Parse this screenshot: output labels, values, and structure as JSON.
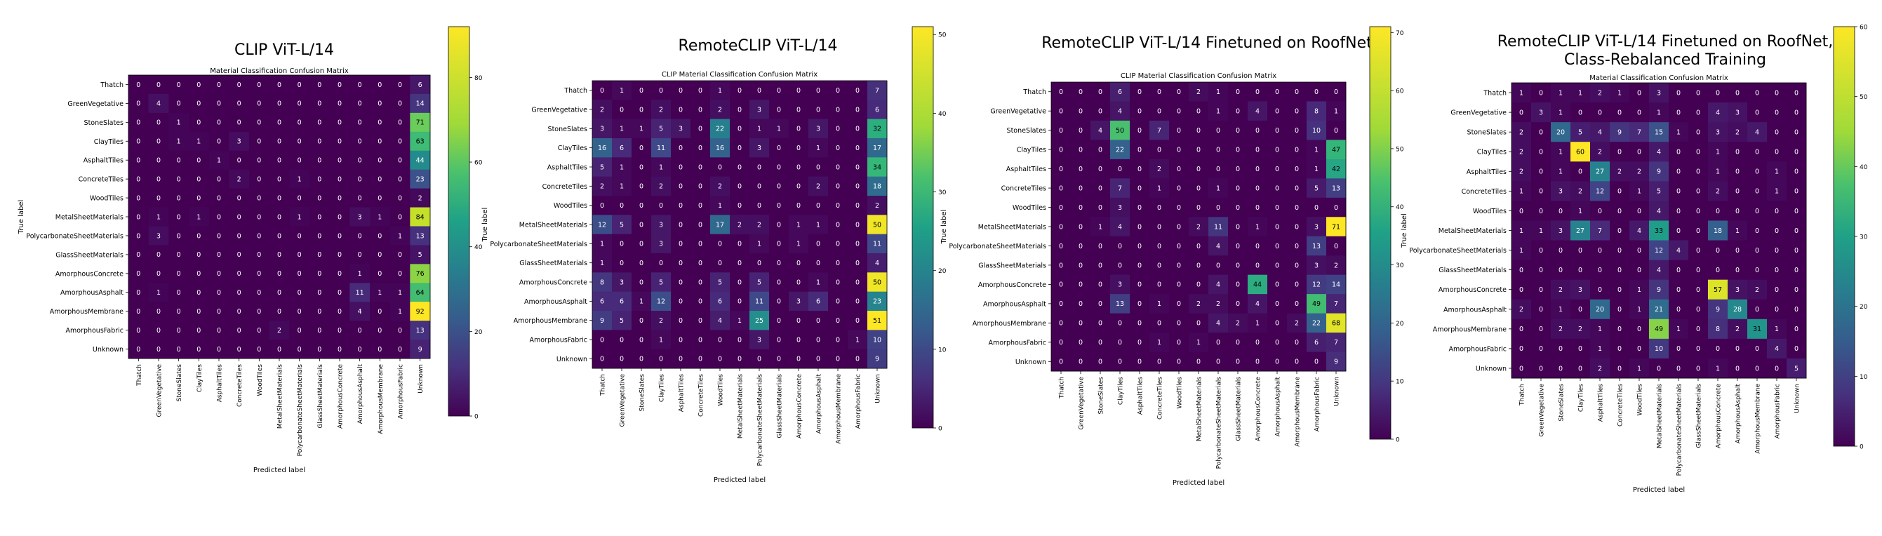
{
  "chart_data": [
    {
      "type": "heatmap",
      "title": "CLIP ViT-L/14",
      "subtitle": "Material Classification Confusion Matrix",
      "xlabel": "Predicted label",
      "ylabel": "True label",
      "labels": [
        "Thatch",
        "GreenVegetative",
        "StoneSlates",
        "ClayTiles",
        "AsphaltTiles",
        "ConcreteTiles",
        "WoodTiles",
        "MetalSheetMaterials",
        "PolycarbonateSheetMaterials",
        "GlassSheetMaterials",
        "AmorphousConcrete",
        "AmorphousAsphalt",
        "AmorphousMembrane",
        "AmorphousFabric",
        "Unknown"
      ],
      "matrix": [
        [
          0,
          0,
          0,
          0,
          0,
          0,
          0,
          0,
          0,
          0,
          0,
          0,
          0,
          0,
          6
        ],
        [
          0,
          4,
          0,
          0,
          0,
          0,
          0,
          0,
          0,
          0,
          0,
          0,
          0,
          0,
          14
        ],
        [
          0,
          0,
          1,
          0,
          0,
          0,
          0,
          0,
          0,
          0,
          0,
          0,
          0,
          0,
          71
        ],
        [
          0,
          0,
          1,
          1,
          0,
          3,
          0,
          0,
          0,
          0,
          0,
          0,
          0,
          0,
          63
        ],
        [
          0,
          0,
          0,
          0,
          1,
          0,
          0,
          0,
          0,
          0,
          0,
          0,
          0,
          0,
          44
        ],
        [
          0,
          0,
          0,
          0,
          0,
          2,
          0,
          0,
          1,
          0,
          0,
          0,
          0,
          0,
          23
        ],
        [
          0,
          0,
          0,
          0,
          0,
          0,
          0,
          0,
          0,
          0,
          0,
          0,
          0,
          0,
          2
        ],
        [
          0,
          1,
          0,
          1,
          0,
          0,
          0,
          0,
          1,
          0,
          0,
          3,
          1,
          0,
          84
        ],
        [
          0,
          3,
          0,
          0,
          0,
          0,
          0,
          0,
          0,
          0,
          0,
          0,
          0,
          1,
          13
        ],
        [
          0,
          0,
          0,
          0,
          0,
          0,
          0,
          0,
          0,
          0,
          0,
          0,
          0,
          0,
          5
        ],
        [
          0,
          0,
          0,
          0,
          0,
          0,
          0,
          0,
          0,
          0,
          0,
          1,
          0,
          0,
          76
        ],
        [
          0,
          1,
          0,
          0,
          0,
          0,
          0,
          0,
          0,
          0,
          0,
          11,
          1,
          1,
          64
        ],
        [
          0,
          0,
          0,
          0,
          0,
          0,
          0,
          0,
          0,
          0,
          0,
          4,
          0,
          1,
          92
        ],
        [
          0,
          0,
          0,
          0,
          0,
          0,
          0,
          2,
          0,
          0,
          0,
          0,
          0,
          0,
          13
        ],
        [
          0,
          0,
          0,
          0,
          0,
          0,
          0,
          0,
          0,
          0,
          0,
          0,
          0,
          0,
          9
        ]
      ],
      "colorbar": {
        "max": 92,
        "ticks": [
          0,
          20,
          40,
          60,
          80
        ]
      }
    },
    {
      "type": "heatmap",
      "title": "RemoteCLIP ViT-L/14",
      "subtitle": "CLIP Material Classification Confusion Matrix",
      "xlabel": "Predicted label",
      "ylabel": "True label",
      "labels": [
        "Thatch",
        "GreenVegetative",
        "StoneSlates",
        "ClayTiles",
        "AsphaltTiles",
        "ConcreteTiles",
        "WoodTiles",
        "MetalSheetMaterials",
        "PolycarbonateSheetMaterials",
        "GlassSheetMaterials",
        "AmorphousConcrete",
        "AmorphousAsphalt",
        "AmorphousMembrane",
        "AmorphousFabric",
        "Unknown"
      ],
      "matrix": [
        [
          0,
          1,
          0,
          0,
          0,
          0,
          1,
          0,
          0,
          0,
          0,
          0,
          0,
          0,
          7
        ],
        [
          2,
          0,
          0,
          2,
          0,
          0,
          2,
          0,
          3,
          0,
          0,
          0,
          0,
          0,
          6
        ],
        [
          3,
          1,
          1,
          5,
          3,
          0,
          22,
          0,
          1,
          1,
          0,
          3,
          0,
          0,
          32
        ],
        [
          16,
          6,
          0,
          11,
          0,
          0,
          16,
          0,
          3,
          0,
          0,
          1,
          0,
          0,
          17
        ],
        [
          5,
          1,
          0,
          1,
          0,
          0,
          0,
          0,
          0,
          0,
          0,
          0,
          0,
          0,
          34
        ],
        [
          2,
          1,
          0,
          2,
          0,
          0,
          2,
          0,
          0,
          0,
          0,
          2,
          0,
          0,
          18
        ],
        [
          0,
          0,
          0,
          0,
          0,
          0,
          1,
          0,
          0,
          0,
          0,
          0,
          0,
          0,
          2
        ],
        [
          12,
          5,
          0,
          3,
          0,
          0,
          17,
          2,
          2,
          0,
          1,
          1,
          0,
          0,
          50
        ],
        [
          1,
          0,
          0,
          3,
          0,
          0,
          0,
          0,
          1,
          0,
          1,
          0,
          0,
          0,
          11
        ],
        [
          1,
          0,
          0,
          0,
          0,
          0,
          0,
          0,
          0,
          0,
          0,
          0,
          0,
          0,
          4
        ],
        [
          8,
          3,
          0,
          5,
          0,
          0,
          5,
          0,
          5,
          0,
          0,
          1,
          0,
          0,
          50
        ],
        [
          6,
          6,
          1,
          12,
          0,
          0,
          6,
          0,
          11,
          0,
          3,
          6,
          0,
          0,
          23
        ],
        [
          9,
          5,
          0,
          2,
          0,
          0,
          4,
          1,
          25,
          0,
          0,
          0,
          0,
          0,
          51
        ],
        [
          0,
          0,
          0,
          1,
          0,
          0,
          0,
          0,
          3,
          0,
          0,
          0,
          0,
          1,
          10
        ],
        [
          0,
          0,
          0,
          0,
          0,
          0,
          0,
          0,
          0,
          0,
          0,
          0,
          0,
          0,
          9
        ]
      ],
      "colorbar": {
        "max": 51,
        "ticks": [
          0,
          10,
          20,
          30,
          40,
          50
        ]
      }
    },
    {
      "type": "heatmap",
      "title": "RemoteCLIP ViT-L/14 Finetuned on RoofNet",
      "subtitle": "CLIP Material Classification Confusion Matrix",
      "xlabel": "Predicted label",
      "ylabel": "True label",
      "labels": [
        "Thatch",
        "GreenVegetative",
        "StoneSlates",
        "ClayTiles",
        "AsphaltTiles",
        "ConcreteTiles",
        "WoodTiles",
        "MetalSheetMaterials",
        "PolycarbonateSheetMaterials",
        "GlassSheetMaterials",
        "AmorphousConcrete",
        "AmorphousAsphalt",
        "AmorphousMembrane",
        "AmorphousFabric",
        "Unknown"
      ],
      "matrix": [
        [
          0,
          0,
          0,
          6,
          0,
          0,
          0,
          2,
          1,
          0,
          0,
          0,
          0,
          0,
          0
        ],
        [
          0,
          0,
          0,
          4,
          0,
          0,
          0,
          0,
          1,
          0,
          4,
          0,
          0,
          8,
          1
        ],
        [
          0,
          0,
          4,
          50,
          0,
          7,
          0,
          0,
          0,
          0,
          0,
          0,
          0,
          10,
          0
        ],
        [
          0,
          0,
          0,
          22,
          0,
          0,
          0,
          0,
          0,
          0,
          0,
          0,
          0,
          1,
          47
        ],
        [
          0,
          0,
          0,
          0,
          0,
          2,
          0,
          0,
          0,
          0,
          0,
          0,
          0,
          1,
          42
        ],
        [
          0,
          0,
          0,
          7,
          0,
          1,
          0,
          0,
          1,
          0,
          0,
          0,
          0,
          5,
          13
        ],
        [
          0,
          0,
          0,
          3,
          0,
          0,
          0,
          0,
          0,
          0,
          0,
          0,
          0,
          0,
          0
        ],
        [
          0,
          0,
          1,
          4,
          0,
          0,
          0,
          2,
          11,
          0,
          1,
          0,
          0,
          3,
          71
        ],
        [
          0,
          0,
          0,
          0,
          0,
          0,
          0,
          0,
          4,
          0,
          0,
          0,
          0,
          13,
          0
        ],
        [
          0,
          0,
          0,
          0,
          0,
          0,
          0,
          0,
          0,
          0,
          0,
          0,
          0,
          3,
          2
        ],
        [
          0,
          0,
          0,
          3,
          0,
          0,
          0,
          0,
          4,
          0,
          44,
          0,
          0,
          12,
          14
        ],
        [
          0,
          0,
          0,
          13,
          0,
          1,
          0,
          2,
          2,
          0,
          4,
          0,
          0,
          49,
          7
        ],
        [
          0,
          0,
          0,
          0,
          0,
          0,
          0,
          0,
          4,
          2,
          1,
          0,
          2,
          22,
          68
        ],
        [
          0,
          0,
          0,
          0,
          0,
          1,
          0,
          1,
          0,
          0,
          0,
          0,
          0,
          6,
          7
        ],
        [
          0,
          0,
          0,
          0,
          0,
          0,
          0,
          0,
          0,
          0,
          0,
          0,
          0,
          0,
          9
        ]
      ],
      "colorbar": {
        "max": 71,
        "ticks": [
          0,
          10,
          20,
          30,
          40,
          50,
          60,
          70
        ]
      }
    },
    {
      "type": "heatmap",
      "title": "RemoteCLIP ViT-L/14 Finetuned on RoofNet,",
      "title2": "Class-Rebalanced Training",
      "subtitle": "Material Classification Confusion Matrix",
      "xlabel": "Predicted label",
      "ylabel": "True label",
      "labels": [
        "Thatch",
        "GreenVegetative",
        "StoneSlates",
        "ClayTiles",
        "AsphaltTiles",
        "ConcreteTiles",
        "WoodTiles",
        "MetalSheetMaterials",
        "PolycarbonateSheetMaterials",
        "GlassSheetMaterials",
        "AmorphousConcrete",
        "AmorphousAsphalt",
        "AmorphousMembrane",
        "AmorphousFabric",
        "Unknown"
      ],
      "matrix": [
        [
          1,
          0,
          1,
          1,
          2,
          1,
          0,
          3,
          0,
          0,
          0,
          0,
          0,
          0,
          0
        ],
        [
          0,
          3,
          1,
          0,
          0,
          0,
          0,
          1,
          0,
          0,
          4,
          3,
          0,
          0,
          0
        ],
        [
          2,
          0,
          20,
          5,
          4,
          9,
          7,
          15,
          1,
          0,
          3,
          2,
          4,
          0,
          0
        ],
        [
          2,
          0,
          1,
          60,
          2,
          0,
          0,
          4,
          0,
          0,
          1,
          0,
          0,
          0,
          0
        ],
        [
          2,
          0,
          1,
          0,
          27,
          2,
          2,
          9,
          0,
          0,
          1,
          0,
          0,
          1,
          0
        ],
        [
          1,
          0,
          3,
          2,
          12,
          0,
          1,
          5,
          0,
          0,
          2,
          0,
          0,
          1,
          0
        ],
        [
          0,
          0,
          0,
          1,
          0,
          0,
          0,
          4,
          0,
          0,
          0,
          0,
          0,
          0,
          0
        ],
        [
          1,
          1,
          3,
          27,
          7,
          0,
          4,
          33,
          0,
          0,
          18,
          1,
          0,
          0,
          0
        ],
        [
          1,
          0,
          0,
          0,
          0,
          0,
          0,
          12,
          4,
          0,
          0,
          0,
          0,
          0,
          0
        ],
        [
          0,
          0,
          0,
          0,
          0,
          0,
          0,
          4,
          0,
          0,
          0,
          0,
          0,
          0,
          0
        ],
        [
          0,
          0,
          2,
          3,
          0,
          0,
          1,
          9,
          0,
          0,
          57,
          3,
          2,
          0,
          0
        ],
        [
          2,
          0,
          1,
          0,
          20,
          0,
          1,
          21,
          0,
          0,
          9,
          28,
          0,
          0,
          0
        ],
        [
          0,
          0,
          2,
          2,
          1,
          0,
          0,
          49,
          1,
          0,
          8,
          2,
          31,
          1,
          0
        ],
        [
          0,
          0,
          0,
          0,
          1,
          0,
          0,
          10,
          0,
          0,
          0,
          0,
          0,
          4,
          0
        ],
        [
          0,
          0,
          0,
          0,
          2,
          0,
          1,
          0,
          0,
          0,
          1,
          0,
          0,
          0,
          5
        ]
      ],
      "colorbar": {
        "max": 60,
        "ticks": [
          0,
          10,
          20,
          30,
          40,
          50,
          60
        ]
      }
    }
  ]
}
